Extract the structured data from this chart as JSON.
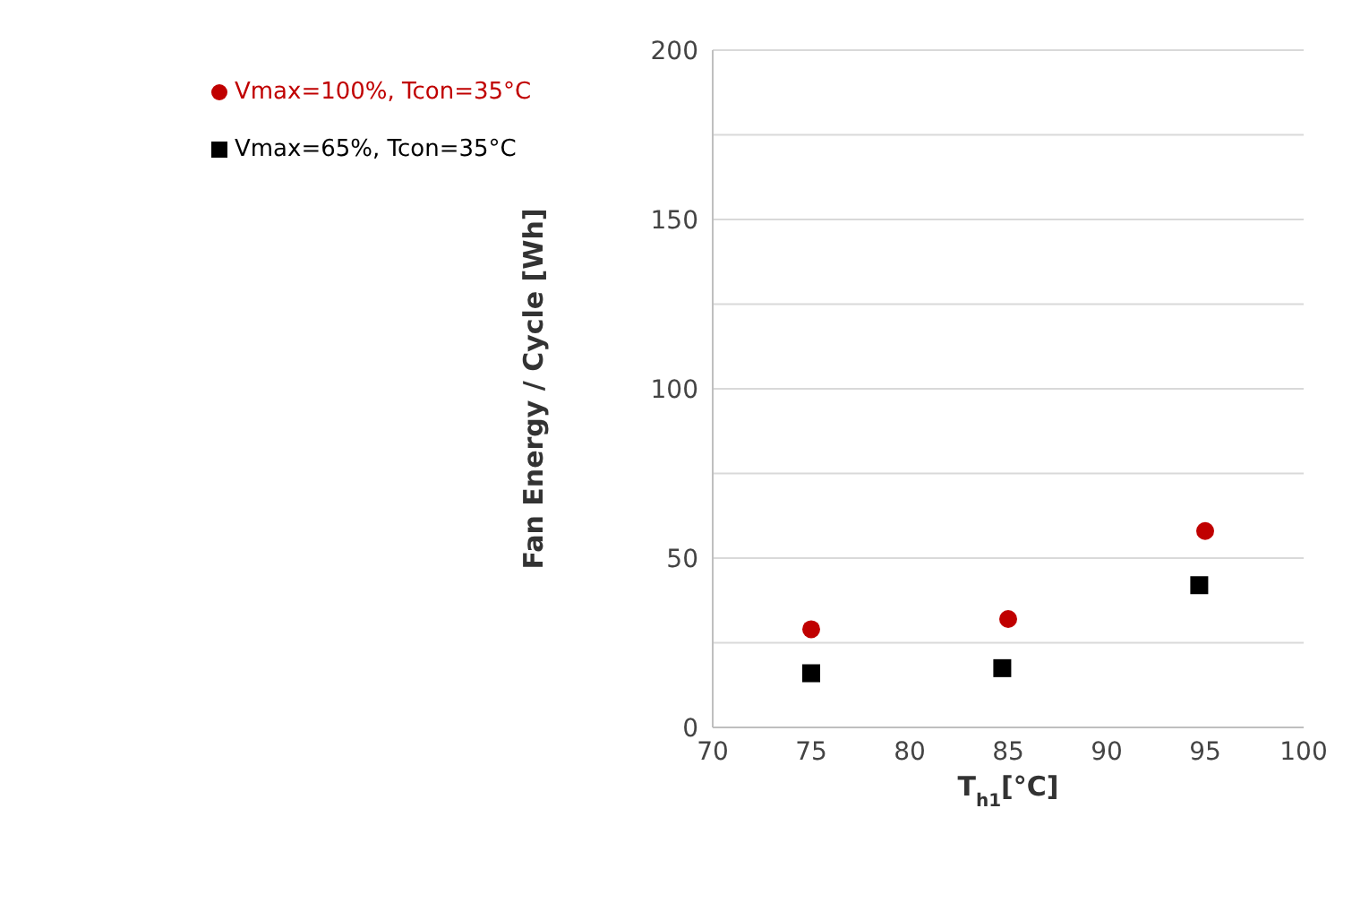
{
  "chart_data": {
    "type": "scatter",
    "xlabel": "T$_{h1}$[°C]",
    "ylabel": "Fan Energy / Cycle  [Wh]",
    "xlim": [
      70,
      100
    ],
    "xticks": [
      70,
      75,
      80,
      85,
      90,
      95,
      100
    ],
    "ylim": [
      0,
      200
    ],
    "yticks": [
      0,
      {
        "value": 25,
        "label": null
      },
      50,
      {
        "value": 75,
        "label": null
      },
      100,
      {
        "value": 125,
        "label": null
      },
      150,
      {
        "value": 175,
        "label": null
      },
      200
    ],
    "grid": "y",
    "legend": "top left",
    "series": [
      {
        "name": "Vmax=100%, Tcon=35°C",
        "color": "#c00000",
        "marker": "circle",
        "x": [
          75,
          85,
          95
        ],
        "values": [
          29,
          32,
          58
        ]
      },
      {
        "name": "Vmax=65%, Tcon=35°C",
        "color": "#000000",
        "marker": "square",
        "x": [
          75,
          84.7,
          94.7
        ],
        "values": [
          16,
          17.5,
          42
        ]
      }
    ]
  }
}
